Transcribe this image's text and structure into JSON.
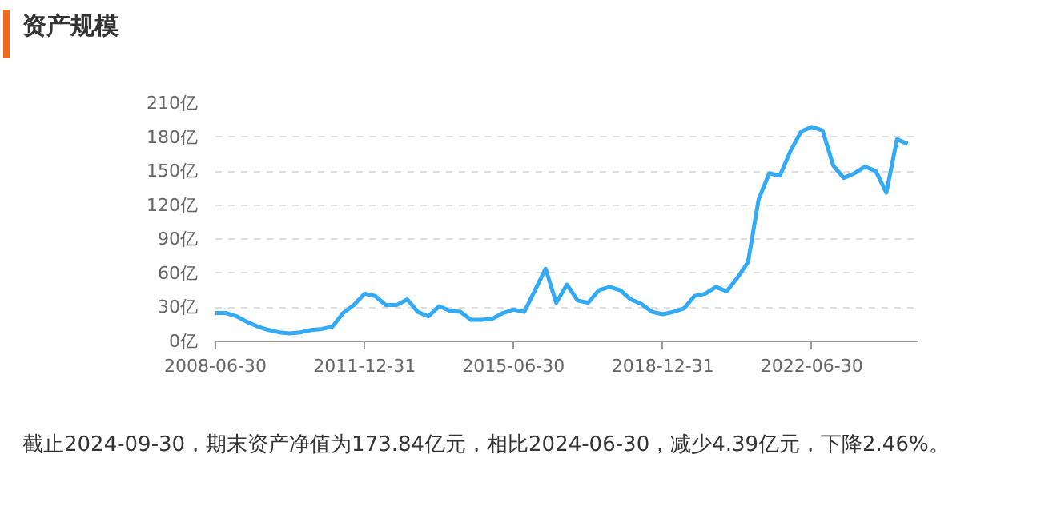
{
  "chart_data": {
    "type": "line",
    "title": "资产规模",
    "annotations": [
      "截止2024-09-30，期末资产净值为173.84亿元，相比2024-06-30，减少4.39亿元，下降2.46%。"
    ],
    "x": [
      "2008-06-30",
      "2008-09-30",
      "2008-12-31",
      "2009-03-31",
      "2009-06-30",
      "2009-09-30",
      "2009-12-31",
      "2010-03-31",
      "2010-06-30",
      "2010-09-30",
      "2010-12-31",
      "2011-03-31",
      "2011-06-30",
      "2011-09-30",
      "2011-12-31",
      "2012-03-31",
      "2012-06-30",
      "2012-09-30",
      "2012-12-31",
      "2013-03-31",
      "2013-06-30",
      "2013-09-30",
      "2013-12-31",
      "2014-03-31",
      "2014-06-30",
      "2014-09-30",
      "2014-12-31",
      "2015-03-31",
      "2015-06-30",
      "2015-09-30",
      "2015-12-31",
      "2016-03-31",
      "2016-06-30",
      "2016-09-30",
      "2016-12-31",
      "2017-03-31",
      "2017-06-30",
      "2017-09-30",
      "2017-12-31",
      "2018-03-31",
      "2018-06-30",
      "2018-09-30",
      "2018-12-31",
      "2019-03-31",
      "2019-06-30",
      "2019-09-30",
      "2019-12-31",
      "2020-03-31",
      "2020-06-30",
      "2020-09-30",
      "2020-12-31",
      "2021-03-31",
      "2021-06-30",
      "2021-09-30",
      "2021-12-31",
      "2022-03-31",
      "2022-06-30",
      "2022-09-30",
      "2022-12-31",
      "2023-03-31",
      "2023-06-30",
      "2023-09-30",
      "2023-12-31",
      "2024-03-31",
      "2024-06-30",
      "2024-09-30"
    ],
    "series": [
      {
        "color": "#33aaf5",
        "values": [
          25,
          25,
          22,
          17,
          13,
          10,
          8,
          7,
          8,
          10,
          11,
          13,
          25,
          32,
          42,
          40,
          32,
          32,
          37,
          26,
          22,
          31,
          27,
          26,
          19,
          19,
          20,
          25,
          28,
          26,
          45,
          64,
          34,
          50,
          36,
          34,
          45,
          48,
          45,
          37,
          33,
          26,
          24,
          26,
          29,
          40,
          42,
          48,
          44,
          56,
          70,
          125,
          148,
          146,
          168,
          185,
          189,
          186,
          155,
          144,
          148,
          154,
          150,
          131,
          178,
          174
        ]
      }
    ],
    "xlim": [
      "2008-06-30",
      "2024-12-31"
    ],
    "xticks": [
      "2008-06-30",
      "2011-12-31",
      "2015-06-30",
      "2018-12-31",
      "2022-06-30"
    ],
    "ylim": [
      0,
      210
    ],
    "yticks": [
      {
        "value": 0,
        "label": "0亿"
      },
      {
        "value": 30,
        "label": "30亿"
      },
      {
        "value": 60,
        "label": "60亿"
      },
      {
        "value": 90,
        "label": "90亿"
      },
      {
        "value": 120,
        "label": "120亿"
      },
      {
        "value": 150,
        "label": "150亿"
      },
      {
        "value": 180,
        "label": "180亿"
      },
      {
        "value": 210,
        "label": "210亿"
      }
    ],
    "grid": "y",
    "marker": "none",
    "line_style": "solid"
  }
}
